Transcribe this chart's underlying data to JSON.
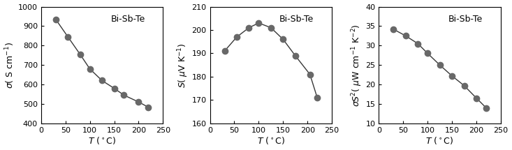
{
  "plot1": {
    "T": [
      30,
      55,
      80,
      100,
      125,
      150,
      170,
      200,
      220
    ],
    "y": [
      935,
      845,
      755,
      680,
      620,
      580,
      545,
      510,
      483
    ],
    "ylim": [
      400,
      1000
    ],
    "yticks": [
      400,
      500,
      600,
      700,
      800,
      900,
      1000
    ],
    "annotation": "Bi-Sb-Te"
  },
  "plot2": {
    "T": [
      30,
      55,
      80,
      100,
      125,
      150,
      175,
      205,
      220
    ],
    "y": [
      191,
      197,
      201,
      203,
      201,
      196,
      189,
      181,
      171
    ],
    "ylim": [
      160,
      210
    ],
    "yticks": [
      160,
      170,
      180,
      190,
      200,
      210
    ],
    "annotation": "Bi-Sb-Te"
  },
  "plot3": {
    "T": [
      30,
      55,
      80,
      100,
      125,
      150,
      175,
      200,
      220
    ],
    "y": [
      34.2,
      32.5,
      30.5,
      28.0,
      25.0,
      22.2,
      19.7,
      16.5,
      14.0
    ],
    "ylim": [
      10,
      40
    ],
    "yticks": [
      10,
      15,
      20,
      25,
      30,
      35,
      40
    ],
    "annotation": "Bi-Sb-Te"
  },
  "xlim": [
    0,
    250
  ],
  "xticks": [
    0,
    50,
    100,
    150,
    200,
    250
  ],
  "marker_color": "#686868",
  "marker_size": 6,
  "line_color": "#383838",
  "line_width": 1.0,
  "bg_color": "#ffffff",
  "annotation_fontsize": 9,
  "tick_labelsize": 8,
  "axis_labelsize": 9
}
